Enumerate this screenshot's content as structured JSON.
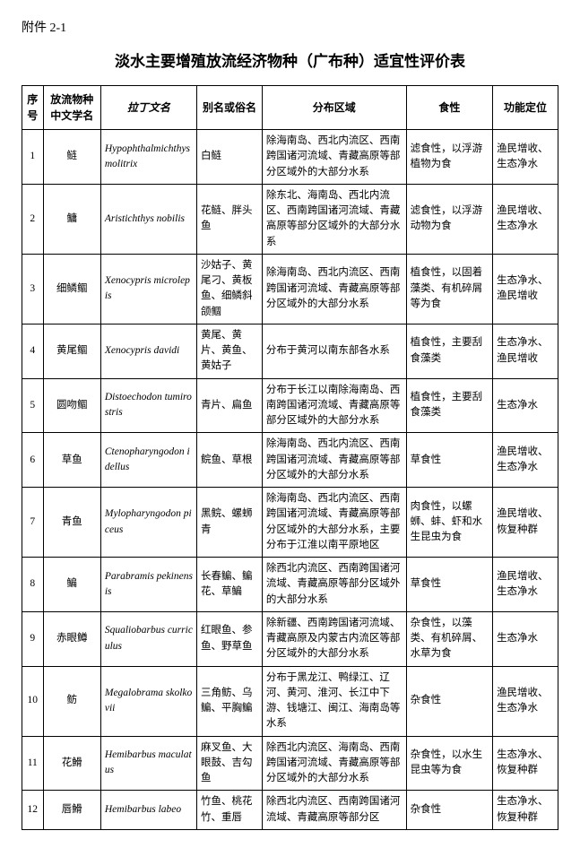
{
  "attachment_label": "附件 2-1",
  "title": "淡水主要增殖放流经济物种（广布种）适宜性评价表",
  "headers": {
    "idx": "序号",
    "cn": "放流物种中文学名",
    "latin": "拉丁文名",
    "alias": "别名或俗名",
    "dist": "分布区域",
    "feed": "食性",
    "func": "功能定位"
  },
  "rows": [
    {
      "idx": "1",
      "cn": "鲢",
      "latin": "Hypophthalmichthys molitrix",
      "alias": "白鲢",
      "dist": "除海南岛、西北内流区、西南跨国诸河流域、青藏高原等部分区域外的大部分水系",
      "feed": "滤食性，以浮游植物为食",
      "func": "渔民增收、生态净水"
    },
    {
      "idx": "2",
      "cn": "鳙",
      "latin": "Aristichthys nobilis",
      "alias": "花鲢、胖头鱼",
      "dist": "除东北、海南岛、西北内流区、西南跨国诸河流域、青藏高原等部分区域外的大部分水系",
      "feed": "滤食性，以浮游动物为食",
      "func": "渔民增收、生态净水"
    },
    {
      "idx": "3",
      "cn": "细鳞鲴",
      "latin": "Xenocypris microlepis",
      "alias": "沙姑子、黄尾刁、黄板鱼、细鳞斜颌鲴",
      "dist": "除海南岛、西北内流区、西南跨国诸河流域、青藏高原等部分区域外的大部分水系",
      "feed": "植食性，以固着藻类、有机碎屑等为食",
      "func": "生态净水、渔民增收"
    },
    {
      "idx": "4",
      "cn": "黄尾鲴",
      "latin": "Xenocypris davidi",
      "alias": "黄尾、黄片、黄鱼、黄姑子",
      "dist": "分布于黄河以南东部各水系",
      "feed": "植食性，主要刮食藻类",
      "func": "生态净水、渔民增收"
    },
    {
      "idx": "5",
      "cn": "圆吻鲴",
      "latin": "Distoechodon tumirostris",
      "alias": "青片、扁鱼",
      "dist": "分布于长江以南除海南岛、西南跨国诸河流域、青藏高原等部分区域外的大部分水系",
      "feed": "植食性，主要刮食藻类",
      "func": "生态净水"
    },
    {
      "idx": "6",
      "cn": "草鱼",
      "latin": "Ctenopharyngodon idellus",
      "alias": "鲩鱼、草根",
      "dist": "除海南岛、西北内流区、西南跨国诸河流域、青藏高原等部分区域外的大部分水系",
      "feed": "草食性",
      "func": "渔民增收、生态净水"
    },
    {
      "idx": "7",
      "cn": "青鱼",
      "latin": "Mylopharyngodon piceus",
      "alias": "黑鲩、螺蛳青",
      "dist": "除海南岛、西北内流区、西南跨国诸河流域、青藏高原等部分区域外的大部分水系，主要分布于江淮以南平原地区",
      "feed": "肉食性，以螺蛳、蚌、虾和水生昆虫为食",
      "func": "渔民增收、恢复种群"
    },
    {
      "idx": "8",
      "cn": "鳊",
      "latin": "Parabramis pekinensis",
      "alias": "长春鳊、鳊花、草鳊",
      "dist": "除西北内流区、西南跨国诸河流域、青藏高原等部分区域外的大部分水系",
      "feed": "草食性",
      "func": "渔民增收、生态净水"
    },
    {
      "idx": "9",
      "cn": "赤眼鳟",
      "latin": "Squaliobarbus curriculus",
      "alias": "红眼鱼、参鱼、野草鱼",
      "dist": "除新疆、西南跨国诸河流域、青藏高原及内蒙古内流区等部分区域外的大部分水系",
      "feed": "杂食性，以藻类、有机碎屑、水草为食",
      "func": "生态净水"
    },
    {
      "idx": "10",
      "cn": "鲂",
      "latin": "Megalobrama skolkovii",
      "alias": "三角鲂、乌鳊、平胸鳊",
      "dist": "分布于黑龙江、鸭绿江、辽河、黄河、淮河、长江中下游、钱塘江、闽江、海南岛等水系",
      "feed": "杂食性",
      "func": "渔民增收、生态净水"
    },
    {
      "idx": "11",
      "cn": "花䱻",
      "latin": "Hemibarbus maculatus",
      "alias": "麻叉鱼、大眼鼓、吉勾鱼",
      "dist": "除西北内流区、海南岛、西南跨国诸河流域、青藏高原等部分区域外的大部分水系",
      "feed": "杂食性，以水生昆虫等为食",
      "func": "生态净水、恢复种群"
    },
    {
      "idx": "12",
      "cn": "唇䱻",
      "latin": "Hemibarbus labeo",
      "alias": "竹鱼、桃花竹、重唇",
      "dist": "除西北内流区、西南跨国诸河流域、青藏高原等部分区",
      "feed": "杂食性",
      "func": "生态净水、恢复种群"
    }
  ]
}
